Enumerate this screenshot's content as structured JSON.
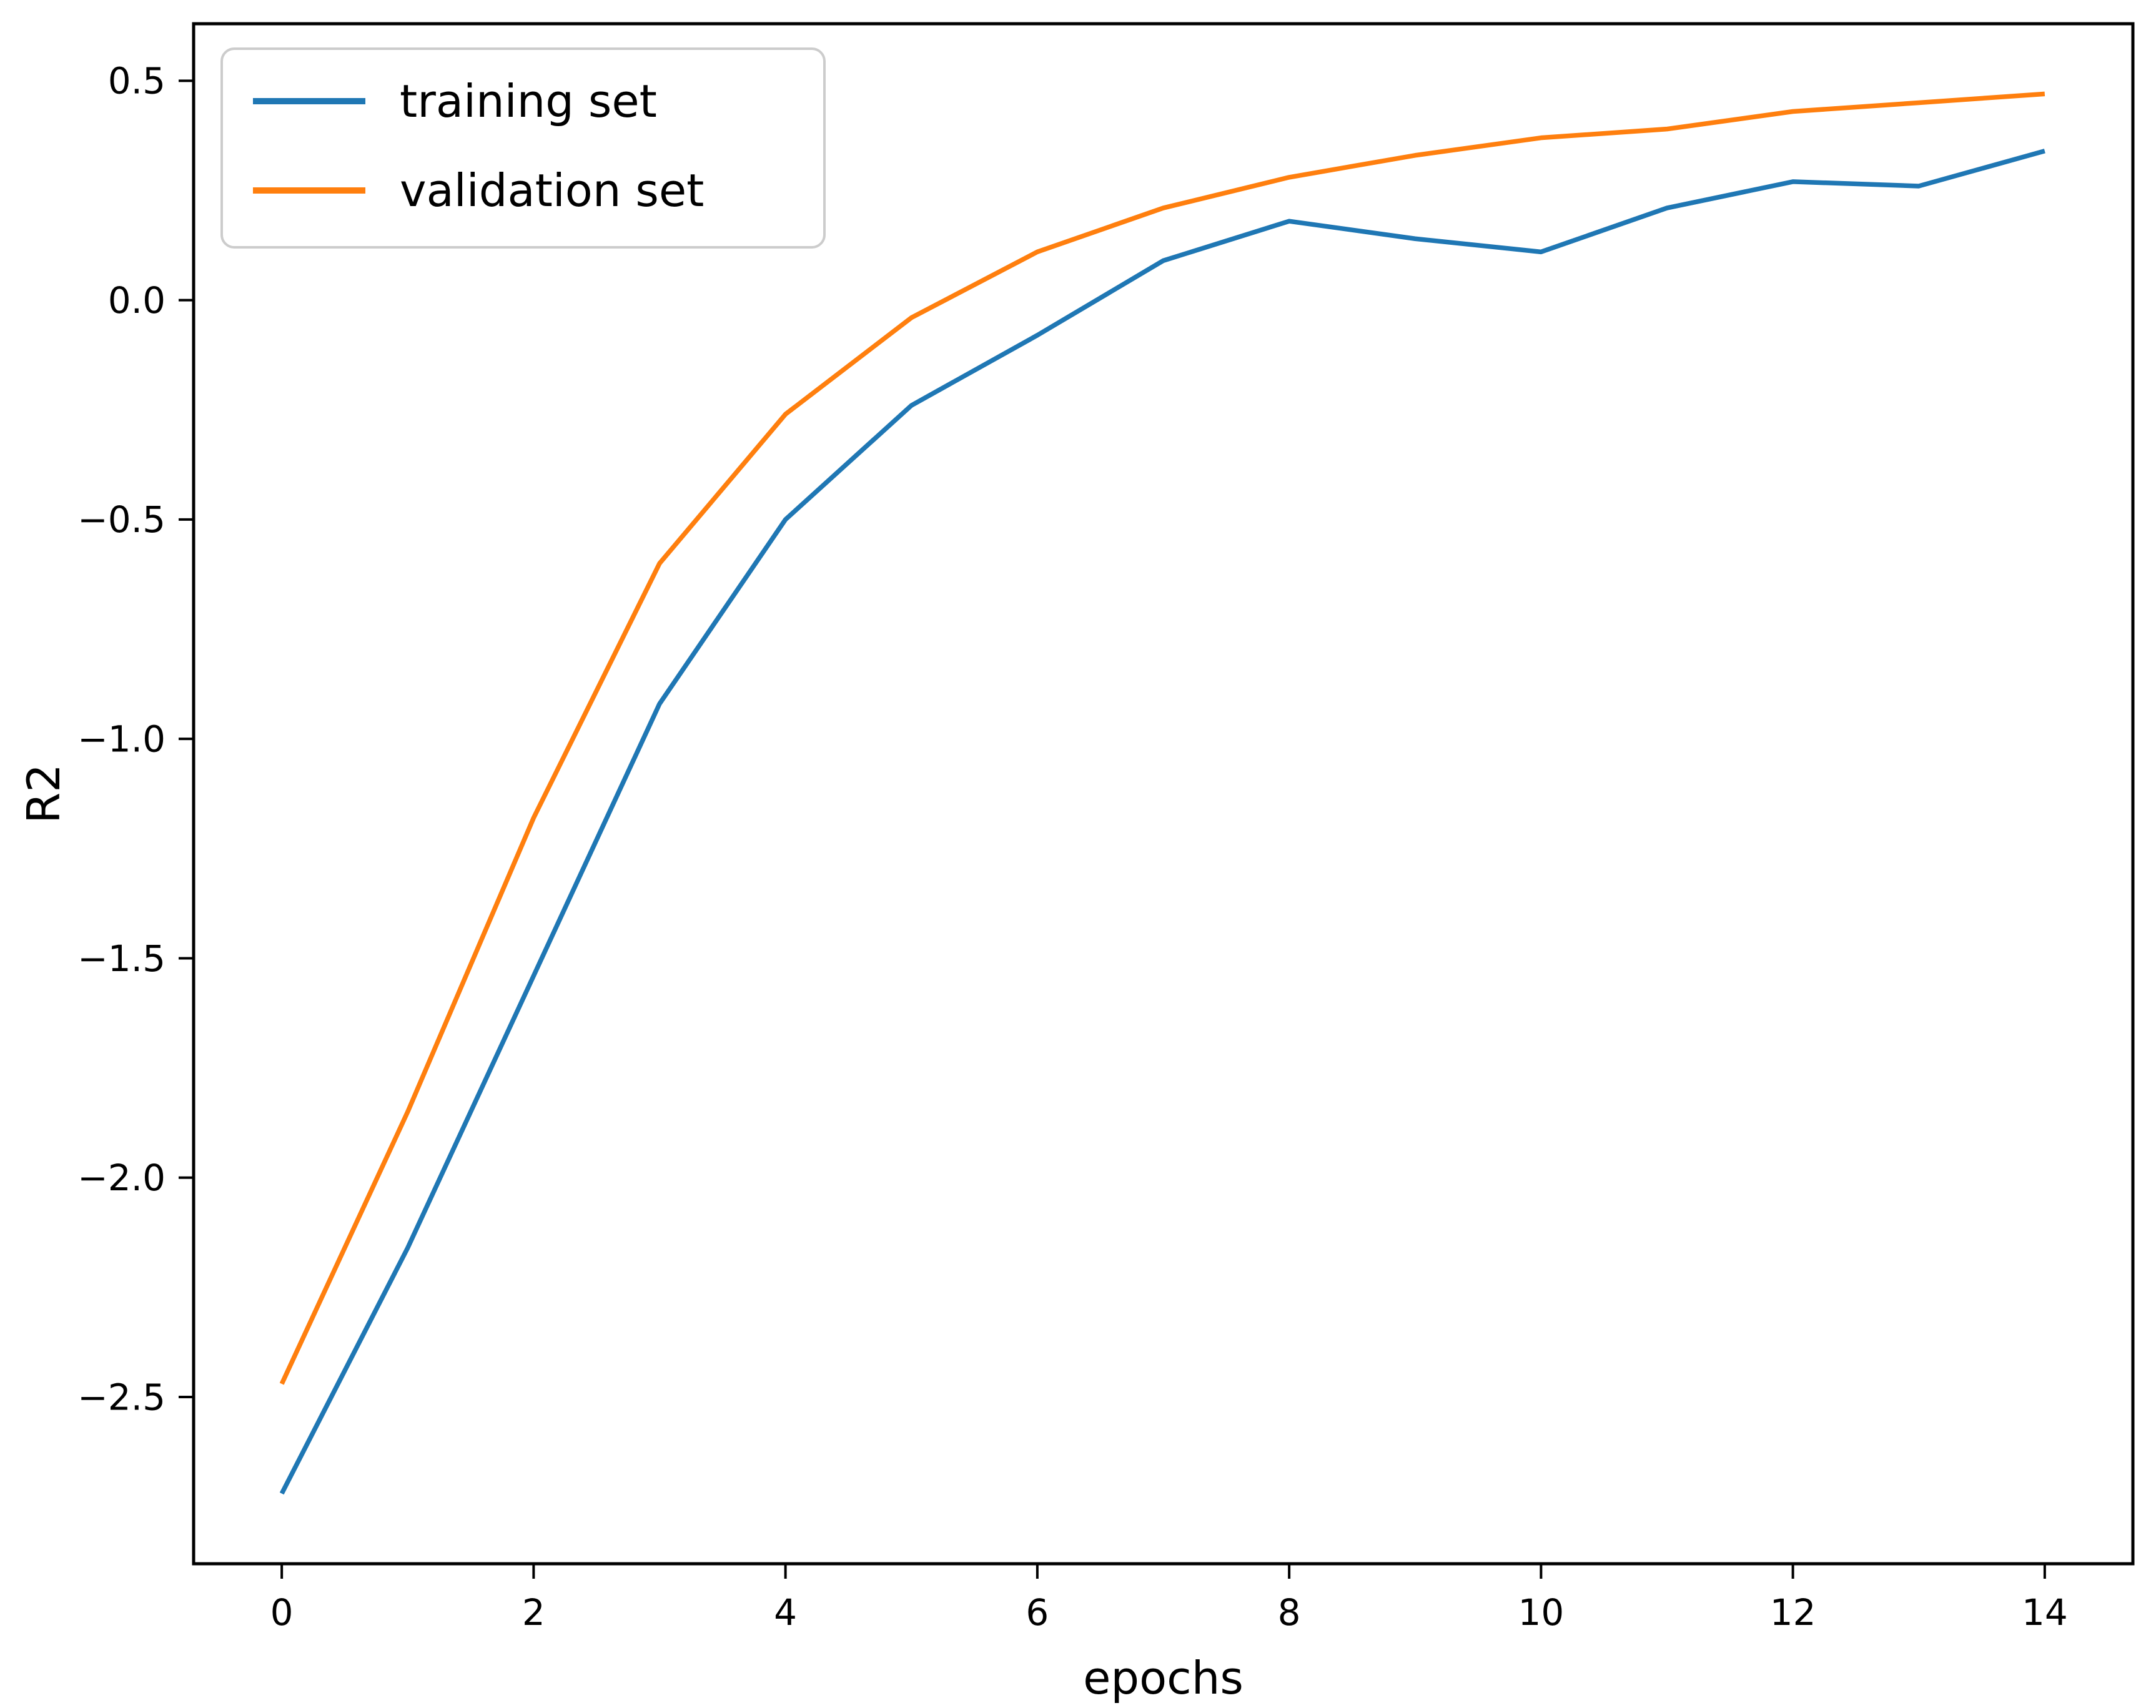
{
  "figure": {
    "background": "#ffffff",
    "spine_color": "#000000",
    "tick_color": "#000000",
    "legend_border_color": "#cccccc",
    "legend_background": "#ffffff"
  },
  "chart_data": {
    "type": "line",
    "title": "",
    "xlabel": "epochs",
    "ylabel": "R2",
    "x": [
      0,
      1,
      2,
      3,
      4,
      5,
      6,
      7,
      8,
      9,
      10,
      11,
      12,
      13,
      14
    ],
    "series": [
      {
        "name": "training set",
        "color": "#1f77b4",
        "values": [
          -2.72,
          -2.16,
          -1.54,
          -0.92,
          -0.5,
          -0.24,
          -0.08,
          0.09,
          0.18,
          0.14,
          0.11,
          0.21,
          0.27,
          0.26,
          0.34
        ]
      },
      {
        "name": "validation set",
        "color": "#ff7f0e",
        "values": [
          -2.47,
          -1.85,
          -1.18,
          -0.6,
          -0.26,
          -0.04,
          0.11,
          0.21,
          0.28,
          0.33,
          0.37,
          0.39,
          0.43,
          0.45,
          0.47
        ]
      }
    ],
    "xlim": [
      -0.7,
      14.7
    ],
    "ylim": [
      -2.88,
      0.63
    ],
    "xticks": [
      0,
      2,
      4,
      6,
      8,
      10,
      12,
      14
    ],
    "xtick_labels": [
      "0",
      "2",
      "4",
      "6",
      "8",
      "10",
      "12",
      "14"
    ],
    "yticks": [
      0.5,
      0.0,
      -0.5,
      -1.0,
      -1.5,
      -2.0,
      -2.5
    ],
    "ytick_labels": [
      "0.5",
      "0.0",
      "−0.5",
      "−1.0",
      "−1.5",
      "−2.0",
      "−2.5"
    ],
    "grid": false,
    "legend": {
      "position": "upper left",
      "entries": [
        "training set",
        "validation set"
      ]
    }
  }
}
